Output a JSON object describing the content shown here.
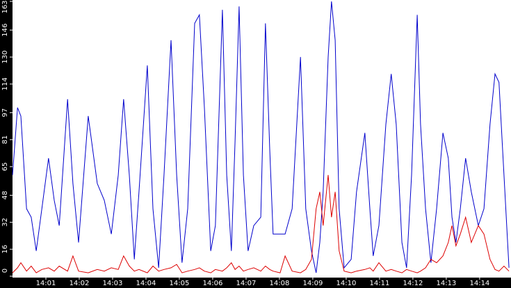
{
  "chart_data": {
    "type": "line",
    "x": [
      0,
      0.15,
      0.25,
      0.42,
      0.56,
      0.71,
      0.88,
      1.08,
      1.25,
      1.4,
      1.65,
      1.81,
      1.98,
      2.27,
      2.54,
      2.75,
      2.96,
      3.17,
      3.33,
      3.5,
      3.65,
      3.79,
      4.04,
      4.21,
      4.38,
      4.54,
      4.75,
      4.92,
      5.08,
      5.25,
      5.46,
      5.6,
      5.75,
      5.94,
      6.08,
      6.29,
      6.42,
      6.56,
      6.67,
      6.79,
      6.92,
      7.06,
      7.23,
      7.44,
      7.58,
      7.71,
      7.81,
      8.02,
      8.17,
      8.38,
      8.63,
      8.79,
      8.96,
      9.1,
      9.21,
      9.31,
      9.46,
      9.56,
      9.67,
      9.79,
      9.94,
      10.15,
      10.31,
      10.56,
      10.71,
      10.81,
      10.98,
      11.19,
      11.35,
      11.5,
      11.67,
      11.81,
      11.96,
      12.13,
      12.23,
      12.38,
      12.54,
      12.71,
      12.9,
      13.06,
      13.17,
      13.29,
      13.42,
      13.58,
      13.75,
      13.96,
      14.13,
      14.31,
      14.46,
      14.58,
      14.73,
      14.88
    ],
    "series": [
      {
        "color": "#0000cc",
        "values": [
          60,
          100,
          95,
          40,
          35,
          15,
          40,
          70,
          45,
          30,
          105,
          55,
          20,
          95,
          55,
          45,
          25,
          60,
          105,
          60,
          10,
          50,
          125,
          40,
          5,
          60,
          140,
          60,
          8,
          40,
          150,
          155,
          100,
          15,
          30,
          158,
          60,
          15,
          80,
          160,
          60,
          15,
          30,
          35,
          150,
          75,
          25,
          25,
          25,
          40,
          130,
          40,
          15,
          2,
          20,
          50,
          130,
          163,
          140,
          40,
          5,
          10,
          50,
          85,
          40,
          12,
          30,
          90,
          120,
          90,
          20,
          5,
          60,
          155,
          90,
          40,
          8,
          40,
          85,
          70,
          35,
          20,
          40,
          70,
          50,
          30,
          40,
          90,
          120,
          115,
          60,
          5
        ]
      },
      {
        "color": "#dd0000",
        "values": [
          2,
          5,
          8,
          3,
          6,
          2,
          4,
          5,
          3,
          6,
          3,
          12,
          3,
          2,
          4,
          3,
          5,
          4,
          12,
          6,
          3,
          4,
          2,
          6,
          3,
          4,
          5,
          7,
          2,
          3,
          4,
          5,
          3,
          2,
          4,
          3,
          5,
          8,
          4,
          6,
          3,
          4,
          5,
          3,
          6,
          4,
          3,
          2,
          12,
          3,
          2,
          4,
          10,
          40,
          50,
          30,
          60,
          35,
          50,
          15,
          3,
          2,
          3,
          4,
          5,
          3,
          8,
          3,
          4,
          3,
          2,
          4,
          3,
          2,
          3,
          5,
          10,
          8,
          12,
          20,
          30,
          18,
          25,
          35,
          20,
          30,
          25,
          10,
          4,
          3,
          6,
          3
        ]
      }
    ],
    "xlim": [
      0,
      14.94
    ],
    "xticks": [
      {
        "value": 1,
        "label": "14:01"
      },
      {
        "value": 2,
        "label": "14:02"
      },
      {
        "value": 3,
        "label": "14:03"
      },
      {
        "value": 4,
        "label": "14:04"
      },
      {
        "value": 5,
        "label": "14:05"
      },
      {
        "value": 6,
        "label": "14:06"
      },
      {
        "value": 7,
        "label": "14:07"
      },
      {
        "value": 8,
        "label": "14:08"
      },
      {
        "value": 9,
        "label": "14:09"
      },
      {
        "value": 10,
        "label": "14:10"
      },
      {
        "value": 11,
        "label": "14:11"
      },
      {
        "value": 12,
        "label": "14:12"
      },
      {
        "value": 13,
        "label": "14:13"
      },
      {
        "value": 14,
        "label": "14:14"
      }
    ],
    "ylim": [
      0,
      163
    ],
    "yticks": [
      0,
      16,
      32,
      48,
      65,
      81,
      97,
      114,
      130,
      146,
      163
    ]
  }
}
